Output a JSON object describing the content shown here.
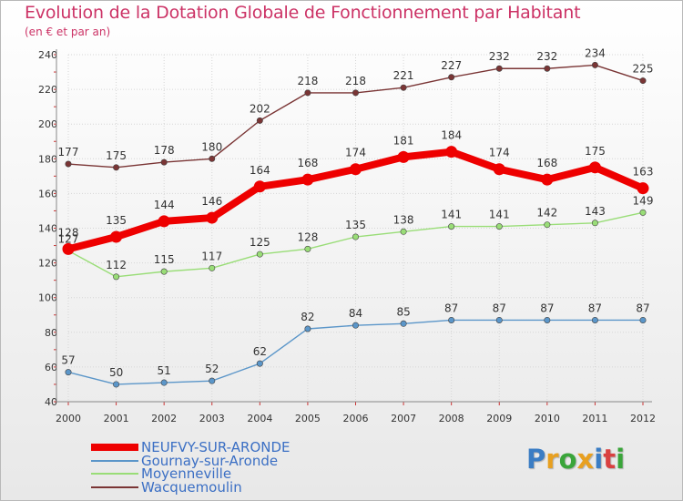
{
  "title": "Evolution de la Dotation Globale de Fonctionnement par Habitant",
  "subtitle": "(en € et par an)",
  "logo": {
    "text": "Proxiti",
    "letters": [
      {
        "ch": "P",
        "color": "#3b7dc4"
      },
      {
        "ch": "r",
        "color": "#e8a020"
      },
      {
        "ch": "o",
        "color": "#3aa53a"
      },
      {
        "ch": "x",
        "color": "#e8a020"
      },
      {
        "ch": "i",
        "color": "#3b7dc4"
      },
      {
        "ch": "t",
        "color": "#d94040"
      },
      {
        "ch": "i",
        "color": "#3aa53a"
      }
    ]
  },
  "chart_data": {
    "type": "line",
    "title": "Evolution de la Dotation Globale de Fonctionnement par Habitant",
    "ylabel": "(en € et par an)",
    "xlabel": "",
    "x": [
      "2000",
      "2001",
      "2002",
      "2003",
      "2004",
      "2005",
      "2006",
      "2007",
      "2008",
      "2009",
      "2010",
      "2011",
      "2012"
    ],
    "ylim": [
      40,
      240
    ],
    "yticks": [
      40,
      60,
      80,
      100,
      120,
      140,
      160,
      180,
      200,
      220,
      240
    ],
    "grid": true,
    "legend_position": "bottom-left",
    "series": [
      {
        "name": "NEUFVY-SUR-ARONDE",
        "color": "#ee0000",
        "emphasis": true,
        "values": [
          128,
          135,
          144,
          146,
          164,
          168,
          174,
          181,
          184,
          174,
          168,
          175,
          163
        ]
      },
      {
        "name": "Gournay-sur-Aronde",
        "color": "#5b96c9",
        "emphasis": false,
        "values": [
          57,
          50,
          51,
          52,
          62,
          82,
          84,
          85,
          87,
          87,
          87,
          87,
          87
        ]
      },
      {
        "name": "Moyenneville",
        "color": "#99dd77",
        "emphasis": false,
        "values": [
          127,
          112,
          115,
          117,
          125,
          128,
          135,
          138,
          141,
          141,
          142,
          143,
          149
        ]
      },
      {
        "name": "Wacquemoulin",
        "color": "#7a3535",
        "emphasis": false,
        "values": [
          177,
          175,
          178,
          180,
          202,
          218,
          218,
          221,
          227,
          232,
          232,
          234,
          225
        ]
      }
    ]
  }
}
